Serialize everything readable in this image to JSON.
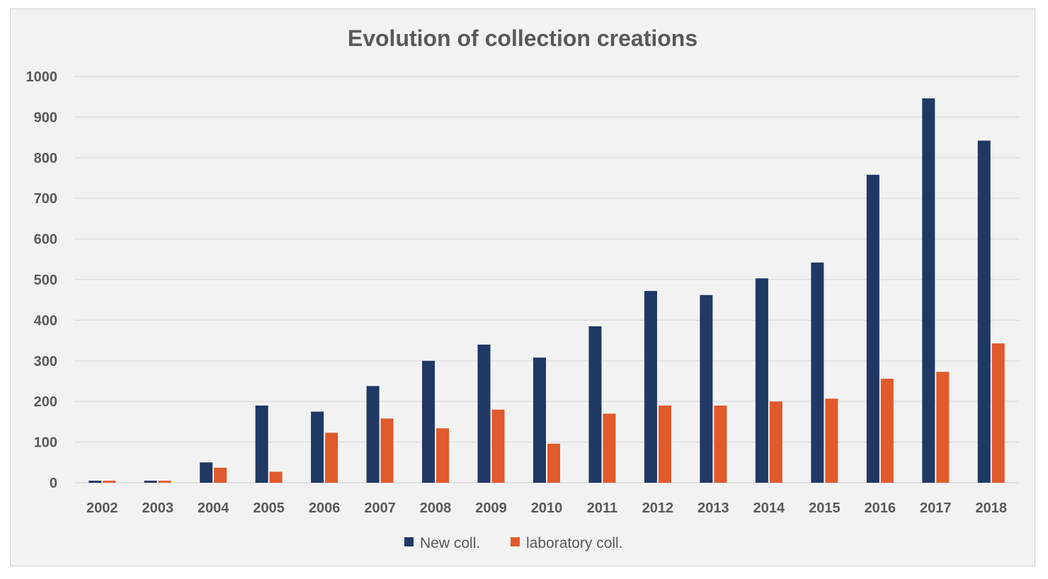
{
  "chart_data": {
    "type": "bar",
    "title": "Evolution of collection creations",
    "xlabel": "",
    "ylabel": "",
    "categories": [
      "2002",
      "2003",
      "2004",
      "2005",
      "2006",
      "2007",
      "2008",
      "2009",
      "2010",
      "2011",
      "2012",
      "2013",
      "2014",
      "2015",
      "2016",
      "2017",
      "2018"
    ],
    "series": [
      {
        "name": "New coll.",
        "color": "#203864",
        "values": [
          5,
          5,
          50,
          190,
          175,
          238,
          300,
          340,
          308,
          385,
          472,
          462,
          503,
          542,
          758,
          946,
          842
        ]
      },
      {
        "name": "laboratory coll.",
        "color": "#E05A2B",
        "values": [
          5,
          5,
          37,
          27,
          123,
          158,
          134,
          180,
          96,
          170,
          190,
          190,
          200,
          207,
          256,
          273,
          343
        ]
      }
    ],
    "ylim": [
      0,
      1000
    ],
    "yticks": [
      0,
      100,
      200,
      300,
      400,
      500,
      600,
      700,
      800,
      900,
      1000
    ],
    "grid": true,
    "legend": "bottom"
  }
}
